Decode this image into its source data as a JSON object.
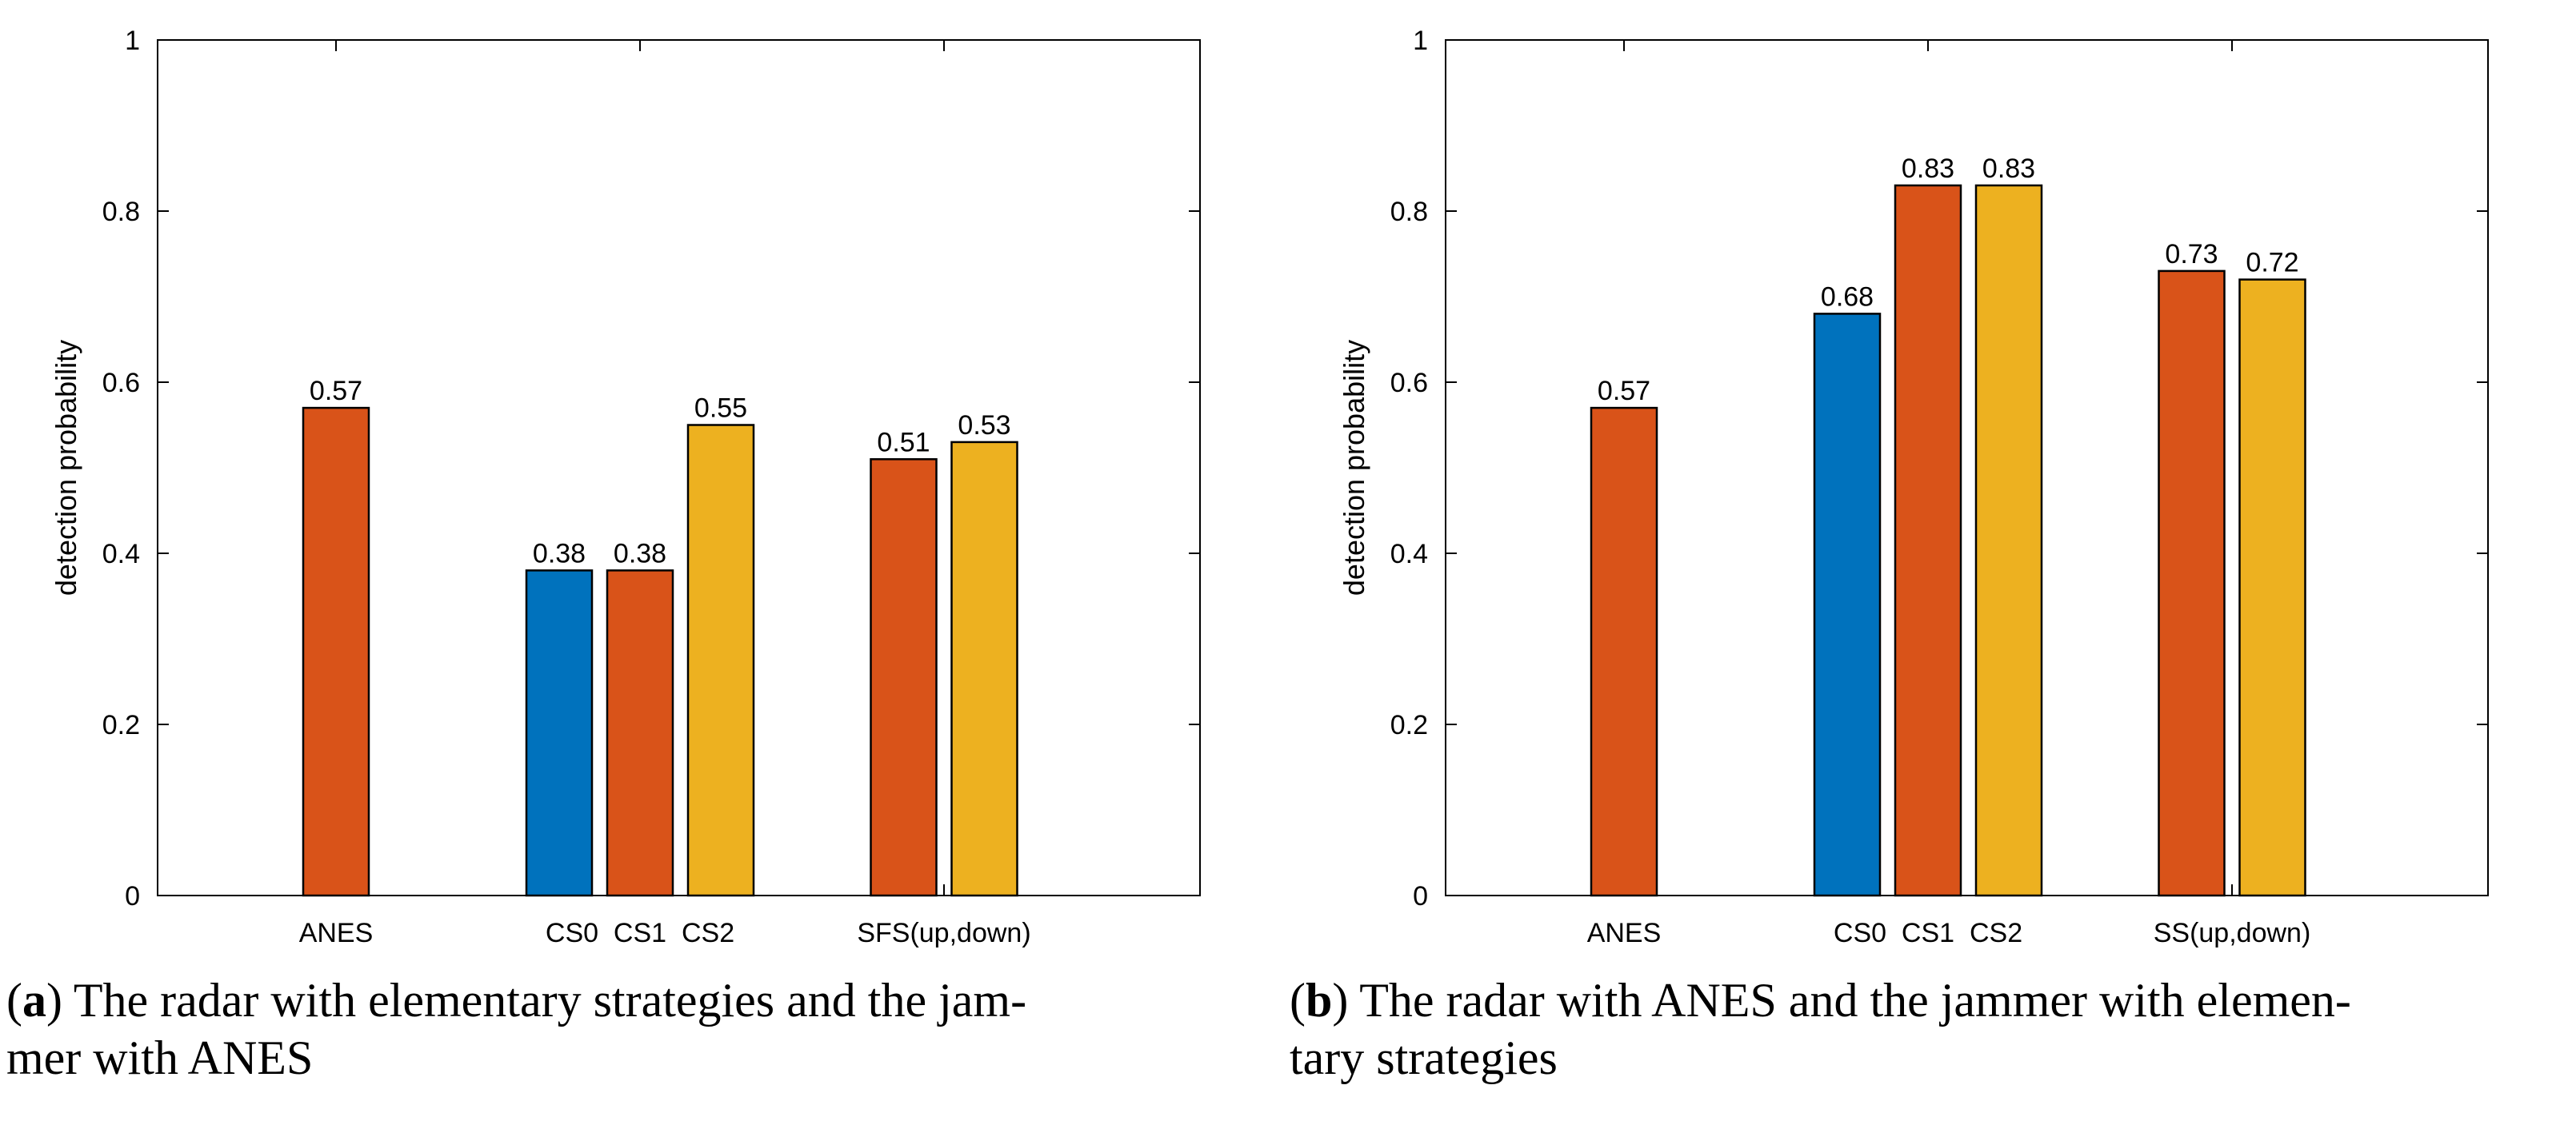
{
  "chart_data": [
    {
      "type": "bar",
      "ylabel": "detection probability",
      "ylim": [
        0,
        1
      ],
      "yticks": [
        "0",
        "0.2",
        "0.4",
        "0.6",
        "0.8",
        "1"
      ],
      "ytick_values": [
        0,
        0.2,
        0.4,
        0.6,
        0.8,
        1
      ],
      "groups": [
        "ANES",
        "CS0  CS1  CS2",
        "SFS(up,down)"
      ],
      "bars": [
        {
          "group": 0,
          "slot": 0,
          "value": 0.57,
          "label": "0.57",
          "series": "red"
        },
        {
          "group": 1,
          "slot": -1,
          "value": 0.38,
          "label": "0.38",
          "series": "blue"
        },
        {
          "group": 1,
          "slot": 0,
          "value": 0.38,
          "label": "0.38",
          "series": "red"
        },
        {
          "group": 1,
          "slot": 1,
          "value": 0.55,
          "label": "0.55",
          "series": "yellow"
        },
        {
          "group": 2,
          "slot": -0.5,
          "value": 0.51,
          "label": "0.51",
          "series": "red"
        },
        {
          "group": 2,
          "slot": 0.5,
          "value": 0.53,
          "label": "0.53",
          "series": "yellow"
        }
      ],
      "caption_letter": "a",
      "caption_text": "The radar with elementary strategies and the jam-",
      "caption_text2": "mer with ANES"
    },
    {
      "type": "bar",
      "ylabel": "detection probability",
      "ylim": [
        0,
        1
      ],
      "yticks": [
        "0",
        "0.2",
        "0.4",
        "0.6",
        "0.8",
        "1"
      ],
      "ytick_values": [
        0,
        0.2,
        0.4,
        0.6,
        0.8,
        1
      ],
      "groups": [
        "ANES",
        "CS0  CS1  CS2",
        "SS(up,down)"
      ],
      "bars": [
        {
          "group": 0,
          "slot": 0,
          "value": 0.57,
          "label": "0.57",
          "series": "red"
        },
        {
          "group": 1,
          "slot": -1,
          "value": 0.68,
          "label": "0.68",
          "series": "blue"
        },
        {
          "group": 1,
          "slot": 0,
          "value": 0.83,
          "label": "0.83",
          "series": "red"
        },
        {
          "group": 1,
          "slot": 1,
          "value": 0.83,
          "label": "0.83",
          "series": "yellow"
        },
        {
          "group": 2,
          "slot": -0.5,
          "value": 0.73,
          "label": "0.73",
          "series": "red"
        },
        {
          "group": 2,
          "slot": 0.5,
          "value": 0.72,
          "label": "0.72",
          "series": "yellow"
        }
      ],
      "caption_letter": "b",
      "caption_text": "The radar with ANES and the jammer with elemen-",
      "caption_text2": "tary strategies"
    }
  ],
  "colors": {
    "blue": "#0072BD",
    "red": "#D95319",
    "yellow": "#EDB120",
    "axis": "#000000"
  }
}
